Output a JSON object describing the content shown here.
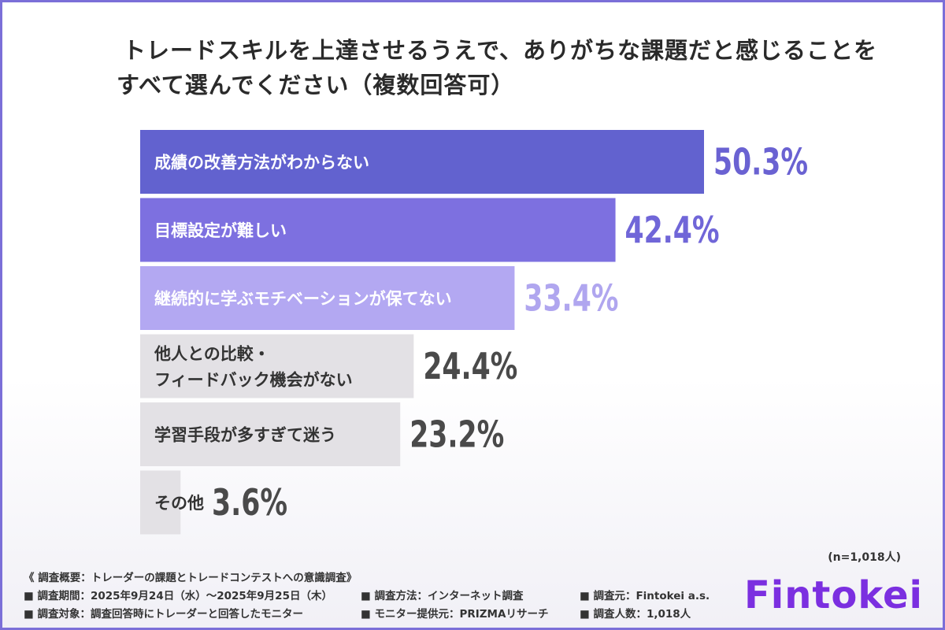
{
  "chart_data": {
    "type": "bar",
    "orientation": "horizontal",
    "title_lines": [
      "トレードスキルを上達させるうえで、ありがちな課題だと感じることを",
      "すべて選んでください（複数回答可）"
    ],
    "categories": [
      [
        "成績の改善方法がわからない"
      ],
      [
        "目標設定が難しい"
      ],
      [
        "継続的に学ぶモチベーションが保てない"
      ],
      [
        "他人との比較・",
        "フィードバック機会がない"
      ],
      [
        "学習手段が多すぎて迷う"
      ],
      [
        "その他"
      ]
    ],
    "values": [
      50.3,
      42.4,
      33.4,
      24.4,
      23.2,
      3.6
    ],
    "value_labels": [
      "50.3%",
      "42.4%",
      "33.4%",
      "24.4%",
      "23.2%",
      "3.6%"
    ],
    "xlim": [
      0,
      50.3
    ],
    "colors": {
      "bars": [
        "#6262cf",
        "#7d70e0",
        "#b3a8f2",
        "#e3e1e5",
        "#e3e1e5",
        "#e3e1e5"
      ],
      "labels": [
        "#ffffff",
        "#ffffff",
        "#ffffff",
        "#333333",
        "#333333",
        "#333333"
      ],
      "values": [
        "#6a62d2",
        "#7066d8",
        "#b0a6ef",
        "#4a4a4a",
        "#4a4a4a",
        "#4a4a4a"
      ]
    }
  },
  "footer": {
    "sample_size": "(n=1,018人)",
    "overview_title": "《 調査概要：トレーダーの課題とトレードコンテストへの意識調査》",
    "rows": [
      [
        "■ 調査期間：2025年9月24日（水）～2025年9月25日（木）",
        "■ 調査方法：インターネット調査",
        "■ 調査元：Fintokei a.s."
      ],
      [
        "■ 調査対象：調査回答時にトレーダーと回答したモニター",
        "■ モニター提供元：PRIZMAリサーチ",
        "■ 調査人数：1,018人"
      ]
    ]
  },
  "logo": {
    "text": "Fintokei",
    "color": "#7b2fe0"
  }
}
